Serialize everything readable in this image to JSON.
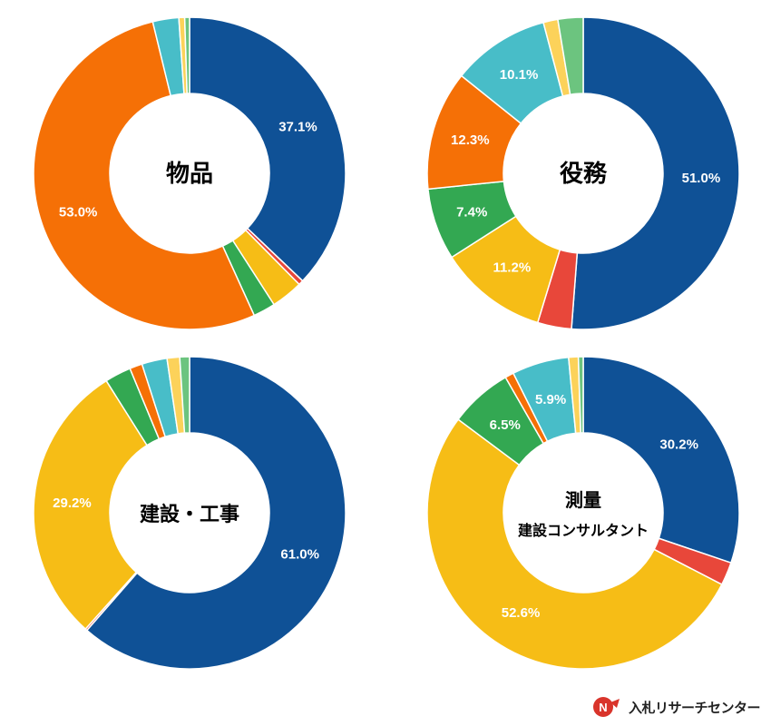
{
  "colors": {
    "blue": "#0f5196",
    "red": "#e8473a",
    "yellow": "#f6bd16",
    "green": "#33a852",
    "orange": "#f57006",
    "teal": "#48bdc8",
    "lightyellow": "#fcd25a",
    "lightgreen": "#6cc47f"
  },
  "chart_data": [
    {
      "type": "donut",
      "center_label": [
        "物品"
      ],
      "slices": [
        {
          "value": 37.1,
          "color": "blue",
          "label": "37.1%"
        },
        {
          "value": 0.5,
          "color": "red",
          "label": ""
        },
        {
          "value": 3.3,
          "color": "yellow",
          "label": ""
        },
        {
          "value": 2.3,
          "color": "green",
          "label": ""
        },
        {
          "value": 53.0,
          "color": "orange",
          "label": "53.0%"
        },
        {
          "value": 2.7,
          "color": "teal",
          "label": ""
        },
        {
          "value": 0.6,
          "color": "lightyellow",
          "label": ""
        },
        {
          "value": 0.5,
          "color": "lightgreen",
          "label": ""
        }
      ]
    },
    {
      "type": "donut",
      "center_label": [
        "役務"
      ],
      "slices": [
        {
          "value": 51.0,
          "color": "blue",
          "label": "51.0%"
        },
        {
          "value": 3.5,
          "color": "red",
          "label": ""
        },
        {
          "value": 11.2,
          "color": "yellow",
          "label": "11.2%"
        },
        {
          "value": 7.4,
          "color": "green",
          "label": "7.4%"
        },
        {
          "value": 12.3,
          "color": "orange",
          "label": "12.3%"
        },
        {
          "value": 10.1,
          "color": "teal",
          "label": "10.1%"
        },
        {
          "value": 1.5,
          "color": "lightyellow",
          "label": ""
        },
        {
          "value": 2.6,
          "color": "lightgreen",
          "label": ""
        }
      ]
    },
    {
      "type": "donut",
      "center_label": [
        "建設・工事"
      ],
      "slices": [
        {
          "value": 61.0,
          "color": "blue",
          "label": "61.0%"
        },
        {
          "value": 0.2,
          "color": "red",
          "label": ""
        },
        {
          "value": 29.2,
          "color": "yellow",
          "label": "29.2%"
        },
        {
          "value": 2.7,
          "color": "green",
          "label": ""
        },
        {
          "value": 1.3,
          "color": "orange",
          "label": ""
        },
        {
          "value": 2.6,
          "color": "teal",
          "label": ""
        },
        {
          "value": 1.3,
          "color": "lightyellow",
          "label": ""
        },
        {
          "value": 1.0,
          "color": "lightgreen",
          "label": ""
        }
      ]
    },
    {
      "type": "donut",
      "center_label": [
        "測量",
        "建設コンサルタント"
      ],
      "slices": [
        {
          "value": 30.2,
          "color": "blue",
          "label": "30.2%"
        },
        {
          "value": 2.4,
          "color": "red",
          "label": ""
        },
        {
          "value": 52.6,
          "color": "yellow",
          "label": "52.6%"
        },
        {
          "value": 6.5,
          "color": "green",
          "label": "6.5%"
        },
        {
          "value": 0.9,
          "color": "orange",
          "label": ""
        },
        {
          "value": 5.9,
          "color": "teal",
          "label": "5.9%"
        },
        {
          "value": 1.0,
          "color": "lightyellow",
          "label": ""
        },
        {
          "value": 0.5,
          "color": "lightgreen",
          "label": ""
        }
      ]
    }
  ],
  "brand": {
    "name": "入札リサーチセンター",
    "logo_icon": "nr-logo-icon",
    "logo_color": "#d9342b"
  }
}
